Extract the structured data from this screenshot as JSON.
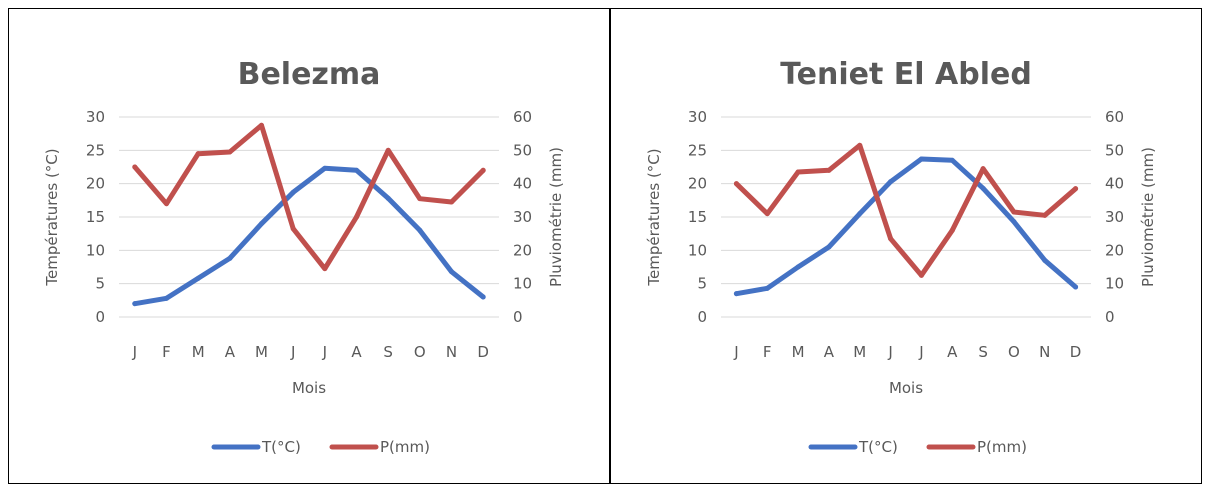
{
  "chart_data": [
    {
      "type": "line",
      "title": "Belezma",
      "categories": [
        "J",
        "F",
        "M",
        "A",
        "M",
        "J",
        "J",
        "A",
        "S",
        "O",
        "N",
        "D"
      ],
      "xlabel": "Mois",
      "ylabel": "Températures (°C)",
      "y2label": "Pluviométrie (mm)",
      "ylim": [
        0,
        30
      ],
      "y2lim": [
        0,
        60
      ],
      "yticks": [
        "0",
        "5",
        "10",
        "15",
        "20",
        "25",
        "30"
      ],
      "y2ticks": [
        "0",
        "10",
        "20",
        "30",
        "40",
        "50",
        "60"
      ],
      "grid": true,
      "legend_position": "bottom",
      "series": [
        {
          "name": "T(°C)",
          "axis": "left",
          "color": "#4472C4",
          "values": [
            2.0,
            2.8,
            5.8,
            8.8,
            14.0,
            18.7,
            22.3,
            22.0,
            17.8,
            13.0,
            6.8,
            3.0
          ]
        },
        {
          "name": "P(mm)",
          "axis": "right",
          "color": "#C0504D",
          "values": [
            45,
            34,
            49,
            49.5,
            57.5,
            26.5,
            14.5,
            30,
            50,
            35.5,
            34.5,
            44
          ]
        }
      ]
    },
    {
      "type": "line",
      "title": "Teniet El Abled",
      "categories": [
        "J",
        "F",
        "M",
        "A",
        "M",
        "J",
        "J",
        "A",
        "S",
        "O",
        "N",
        "D"
      ],
      "xlabel": "Mois",
      "ylabel": "Températures (°C)",
      "y2label": "Pluviométrie (mm)",
      "ylim": [
        0,
        30
      ],
      "y2lim": [
        0,
        60
      ],
      "yticks": [
        "0",
        "5",
        "10",
        "15",
        "20",
        "25",
        "30"
      ],
      "y2ticks": [
        "0",
        "10",
        "20",
        "30",
        "40",
        "50",
        "60"
      ],
      "grid": true,
      "legend_position": "bottom",
      "series": [
        {
          "name": "T(°C)",
          "axis": "left",
          "color": "#4472C4",
          "values": [
            3.5,
            4.3,
            7.5,
            10.5,
            15.5,
            20.3,
            23.7,
            23.5,
            19.3,
            14.3,
            8.5,
            4.5
          ]
        },
        {
          "name": "P(mm)",
          "axis": "right",
          "color": "#C0504D",
          "values": [
            40,
            31,
            43.5,
            44,
            51.5,
            23.5,
            12.5,
            26,
            44.5,
            31.5,
            30.5,
            38.5
          ]
        }
      ]
    }
  ]
}
